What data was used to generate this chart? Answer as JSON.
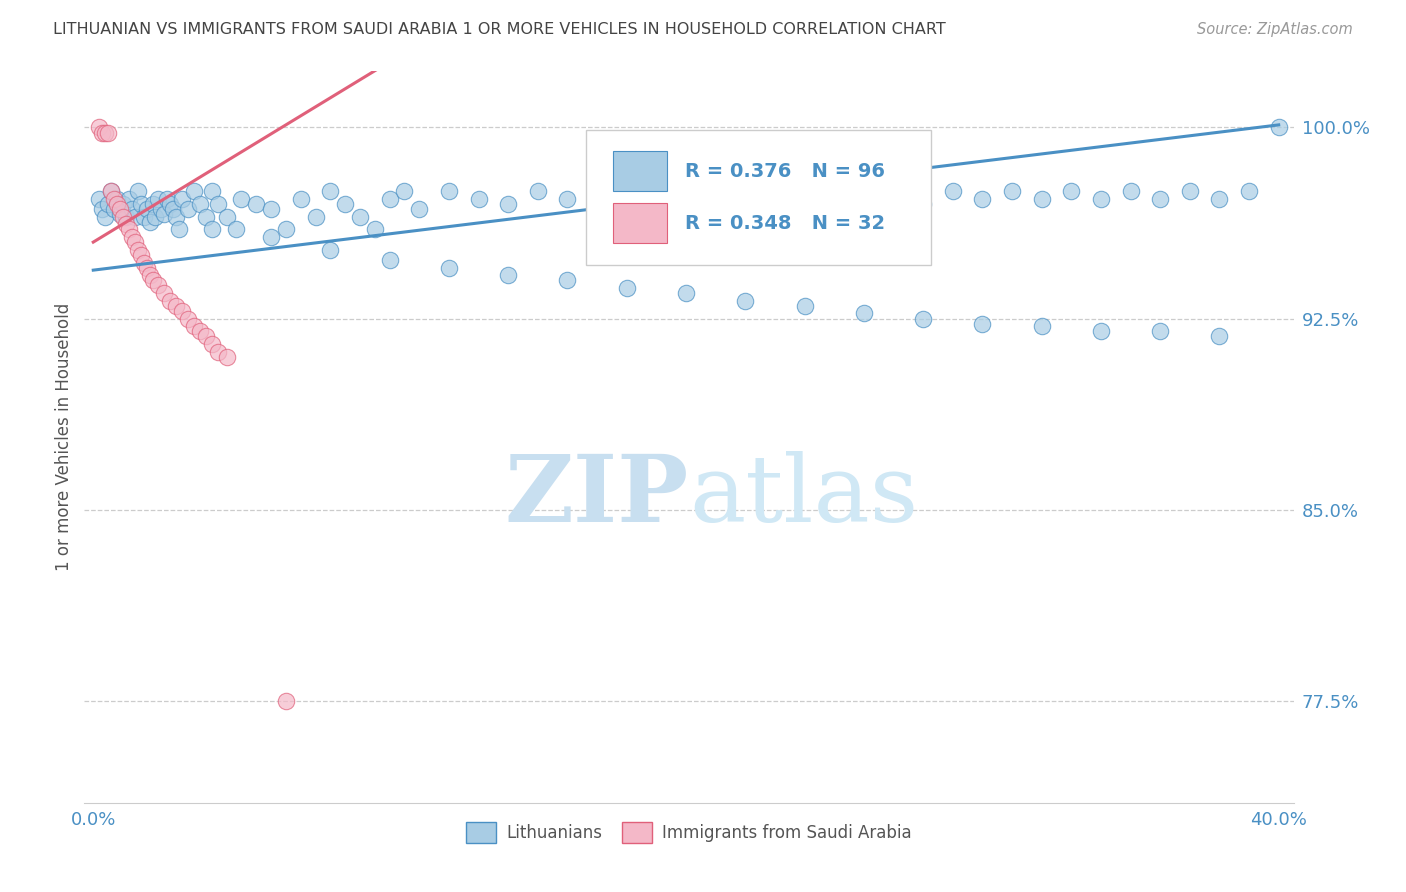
{
  "title": "LITHUANIAN VS IMMIGRANTS FROM SAUDI ARABIA 1 OR MORE VEHICLES IN HOUSEHOLD CORRELATION CHART",
  "source": "Source: ZipAtlas.com",
  "ylabel": "1 or more Vehicles in Household",
  "ytick_labels": [
    "100.0%",
    "92.5%",
    "85.0%",
    "77.5%"
  ],
  "ytick_values": [
    1.0,
    0.925,
    0.85,
    0.775
  ],
  "xlim": [
    -0.003,
    0.405
  ],
  "ylim": [
    0.735,
    1.022
  ],
  "legend_label1": "Lithuanians",
  "legend_label2": "Immigrants from Saudi Arabia",
  "R1": 0.376,
  "N1": 96,
  "R2": 0.348,
  "N2": 32,
  "blue_fill": "#a8cce4",
  "blue_edge": "#4a90c4",
  "pink_fill": "#f4b8c8",
  "pink_edge": "#e0607a",
  "blue_line": "#4a90c4",
  "pink_line": "#e0607a",
  "title_color": "#444444",
  "axis_color": "#4a90c4",
  "grid_color": "#cccccc",
  "watermark_color": "#dceef8",
  "blue_x": [
    0.002,
    0.003,
    0.004,
    0.005,
    0.006,
    0.007,
    0.008,
    0.009,
    0.01,
    0.011,
    0.012,
    0.013,
    0.014,
    0.015,
    0.016,
    0.017,
    0.018,
    0.019,
    0.02,
    0.021,
    0.022,
    0.023,
    0.024,
    0.025,
    0.026,
    0.027,
    0.028,
    0.029,
    0.03,
    0.032,
    0.034,
    0.036,
    0.038,
    0.04,
    0.042,
    0.045,
    0.048,
    0.05,
    0.055,
    0.06,
    0.065,
    0.07,
    0.075,
    0.08,
    0.085,
    0.09,
    0.095,
    0.1,
    0.105,
    0.11,
    0.12,
    0.13,
    0.14,
    0.15,
    0.16,
    0.17,
    0.18,
    0.19,
    0.2,
    0.21,
    0.22,
    0.23,
    0.24,
    0.25,
    0.27,
    0.28,
    0.29,
    0.3,
    0.31,
    0.32,
    0.33,
    0.34,
    0.35,
    0.36,
    0.37,
    0.38,
    0.39,
    0.04,
    0.06,
    0.08,
    0.1,
    0.12,
    0.14,
    0.16,
    0.18,
    0.2,
    0.22,
    0.24,
    0.26,
    0.28,
    0.3,
    0.32,
    0.34,
    0.36,
    0.38,
    0.4
  ],
  "blue_y": [
    0.972,
    0.968,
    0.965,
    0.97,
    0.975,
    0.968,
    0.972,
    0.966,
    0.97,
    0.965,
    0.972,
    0.968,
    0.965,
    0.975,
    0.97,
    0.965,
    0.968,
    0.963,
    0.97,
    0.965,
    0.972,
    0.968,
    0.966,
    0.972,
    0.97,
    0.968,
    0.965,
    0.96,
    0.972,
    0.968,
    0.975,
    0.97,
    0.965,
    0.975,
    0.97,
    0.965,
    0.96,
    0.972,
    0.97,
    0.968,
    0.96,
    0.972,
    0.965,
    0.975,
    0.97,
    0.965,
    0.96,
    0.972,
    0.975,
    0.968,
    0.975,
    0.972,
    0.97,
    0.975,
    0.972,
    0.975,
    0.965,
    0.97,
    0.975,
    0.972,
    0.975,
    0.97,
    0.975,
    0.972,
    0.975,
    0.97,
    0.975,
    0.972,
    0.975,
    0.972,
    0.975,
    0.972,
    0.975,
    0.972,
    0.975,
    0.972,
    0.975,
    0.96,
    0.957,
    0.952,
    0.948,
    0.945,
    0.942,
    0.94,
    0.937,
    0.935,
    0.932,
    0.93,
    0.927,
    0.925,
    0.923,
    0.922,
    0.92,
    0.92,
    0.918,
    1.0
  ],
  "pink_x": [
    0.002,
    0.003,
    0.004,
    0.005,
    0.006,
    0.007,
    0.008,
    0.009,
    0.01,
    0.011,
    0.012,
    0.013,
    0.014,
    0.015,
    0.016,
    0.017,
    0.018,
    0.019,
    0.02,
    0.022,
    0.024,
    0.026,
    0.028,
    0.03,
    0.032,
    0.034,
    0.036,
    0.038,
    0.04,
    0.042,
    0.045,
    0.065
  ],
  "pink_y": [
    1.0,
    0.998,
    0.998,
    0.998,
    0.975,
    0.972,
    0.97,
    0.968,
    0.965,
    0.962,
    0.96,
    0.957,
    0.955,
    0.952,
    0.95,
    0.947,
    0.945,
    0.942,
    0.94,
    0.938,
    0.935,
    0.932,
    0.93,
    0.928,
    0.925,
    0.922,
    0.92,
    0.918,
    0.915,
    0.912,
    0.91,
    0.775
  ]
}
